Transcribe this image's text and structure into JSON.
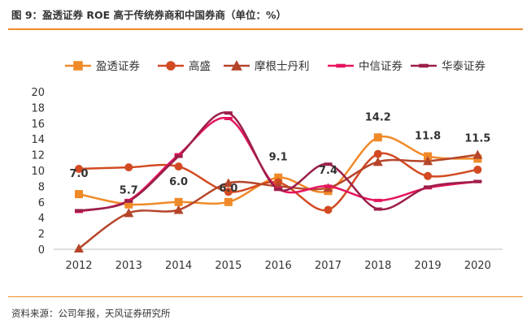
{
  "header": {
    "title": "图 9：盈透证券 ROE 高于传统券商和中国券商（单位：%）"
  },
  "footer": {
    "source": "资料来源：公司年报，天风证券研究所"
  },
  "colors": {
    "盈透证券": "#F08A28",
    "高盛": "#D24A22",
    "摩根士丹利": "#B5452A",
    "中信证券": "#E5145F",
    "华泰证券": "#9B1F4A",
    "rule": "#F08A28"
  },
  "chart_data": {
    "type": "line",
    "title": "",
    "xlabel": "",
    "ylabel": "",
    "categories": [
      "2012",
      "2013",
      "2014",
      "2015",
      "2016",
      "2017",
      "2018",
      "2019",
      "2020"
    ],
    "ylim": [
      0,
      20
    ],
    "yticks": [
      0,
      2,
      4,
      6,
      8,
      10,
      12,
      14,
      16,
      18,
      20
    ],
    "grid": false,
    "legend_position": "top",
    "series": [
      {
        "name": "盈透证券",
        "marker": "square",
        "values": [
          7.0,
          5.7,
          6.0,
          6.0,
          9.1,
          7.4,
          14.2,
          11.8,
          11.5
        ],
        "labels": [
          "7.0",
          "5.7",
          "6.0",
          "6.0",
          "9.1",
          "7.4",
          "14.2",
          "11.8",
          "11.5"
        ]
      },
      {
        "name": "高盛",
        "marker": "circle",
        "values": [
          10.2,
          10.4,
          10.5,
          7.3,
          8.5,
          5.0,
          12.1,
          9.3,
          10.1
        ]
      },
      {
        "name": "摩根士丹利",
        "marker": "triangle",
        "values": [
          0.1,
          4.6,
          5.0,
          8.4,
          8.0,
          7.8,
          11.1,
          11.2,
          12.0
        ]
      },
      {
        "name": "中信证券",
        "marker": "dash",
        "values": [
          4.8,
          6.2,
          12.0,
          16.6,
          7.7,
          8.0,
          6.2,
          7.8,
          8.6
        ]
      },
      {
        "name": "华泰证券",
        "marker": "dash",
        "values": [
          4.9,
          6.1,
          11.8,
          17.3,
          7.6,
          10.8,
          5.1,
          7.9,
          8.6
        ]
      }
    ]
  }
}
